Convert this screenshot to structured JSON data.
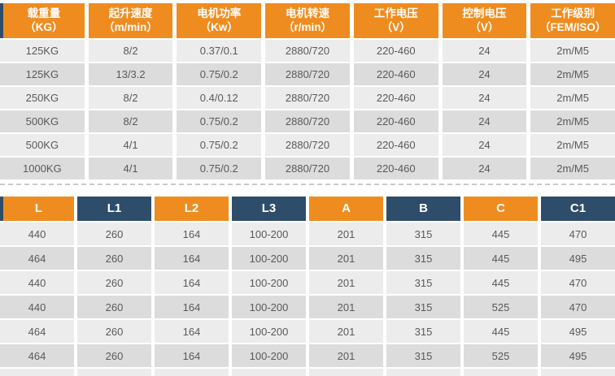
{
  "colors": {
    "orange": "#EF8C1F",
    "navy": "#2E4D6B",
    "row_light": "#ECECEC",
    "row_dark": "#DCDCDC",
    "cell_text": "#58595B"
  },
  "tables": {
    "specs": {
      "name": "electric-hoist-specifications",
      "headers": [
        {
          "label": "载重量",
          "unit": "（KG）"
        },
        {
          "label": "起升速度",
          "unit": "（m/min）"
        },
        {
          "label": "电机功率",
          "unit": "（Kw）"
        },
        {
          "label": "电机转速",
          "unit": "（r/min）"
        },
        {
          "label": "工作电压",
          "unit": "（V）"
        },
        {
          "label": "控制电压",
          "unit": "（V）"
        },
        {
          "label": "工作级别",
          "unit": "（FEM/ISO）"
        }
      ],
      "rows": [
        [
          "125KG",
          "8/2",
          "0.37/0.1",
          "2880/720",
          "220-460",
          "24",
          "2m/M5"
        ],
        [
          "125KG",
          "13/3.2",
          "0.75/0.2",
          "2880/720",
          "220-460",
          "24",
          "2m/M5"
        ],
        [
          "250KG",
          "8/2",
          "0.4/0.12",
          "2880/720",
          "220-460",
          "24",
          "2m/M5"
        ],
        [
          "500KG",
          "8/2",
          "0.75/0.2",
          "2880/720",
          "220-460",
          "24",
          "2m/M5"
        ],
        [
          "500KG",
          "4/1",
          "0.75/0.2",
          "2880/720",
          "220-460",
          "24",
          "2m/M5"
        ],
        [
          "1000KG",
          "4/1",
          "0.75/0.2",
          "2880/720",
          "220-460",
          "24",
          "2m/M5"
        ]
      ]
    },
    "dimensions": {
      "name": "hoist-dimensions",
      "headers": [
        "L",
        "L1",
        "L2",
        "L3",
        "A",
        "B",
        "C",
        "C1"
      ],
      "rows": [
        [
          "440",
          "260",
          "164",
          "100-200",
          "201",
          "315",
          "445",
          "470"
        ],
        [
          "464",
          "260",
          "164",
          "100-200",
          "201",
          "315",
          "445",
          "495"
        ],
        [
          "440",
          "260",
          "164",
          "100-200",
          "201",
          "315",
          "445",
          "470"
        ],
        [
          "440",
          "260",
          "164",
          "100-200",
          "201",
          "315",
          "525",
          "470"
        ],
        [
          "464",
          "260",
          "164",
          "100-200",
          "201",
          "315",
          "445",
          "495"
        ],
        [
          "464",
          "260",
          "164",
          "100-200",
          "201",
          "315",
          "525",
          "495"
        ]
      ]
    }
  }
}
